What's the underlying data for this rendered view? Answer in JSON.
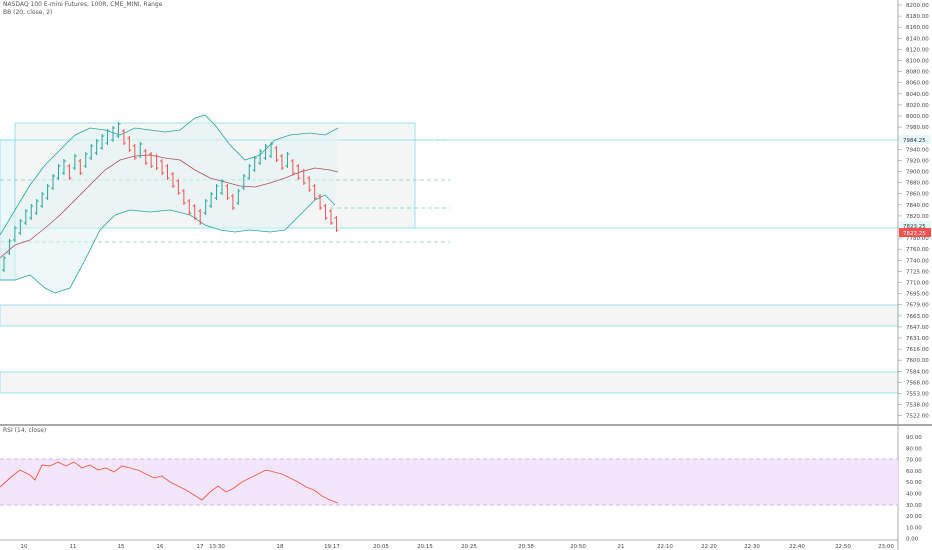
{
  "header": {
    "symbol_line": "NASDAQ 100 E-mini Futures, 100R, CME_MINI, Range",
    "bb_line": "BB (20, close, 2)"
  },
  "rsi": {
    "label": "RSI (14, close)",
    "axis_labels": [
      "90.00",
      "80.00",
      "70.00",
      "60.00",
      "50.00",
      "40.00",
      "30.00",
      "20.00",
      "10.00",
      "0.00"
    ],
    "band_color": "#f3e5fb",
    "line_color": "#f05a3c"
  },
  "price_axis_labels": [
    "8200.00",
    "8180.00",
    "8160.00",
    "8140.00",
    "8120.00",
    "8100.00",
    "8080.00",
    "8060.00",
    "8040.00",
    "8020.00",
    "8000.00",
    "7980.00",
    "7960.00",
    "7940.00",
    "7920.00",
    "7900.00",
    "7880.00",
    "7860.00",
    "7840.00",
    "7820.00",
    "7800.00",
    "7780.00",
    "7760.00",
    "7740.00",
    "7725.00",
    "7710.00",
    "7695.00",
    "7679.00",
    "7663.00",
    "7647.00",
    "7631.00",
    "7616.00",
    "7600.00",
    "7584.00",
    "7568.00",
    "7553.00",
    "7538.00",
    "7522.00"
  ],
  "price_tags": [
    {
      "label": "7984.25",
      "bg": "#e8f7fb",
      "fg": "#333333"
    },
    {
      "label": "7823.25",
      "bg": "#e8f7fb",
      "fg": "#333333"
    },
    {
      "label": "7822.25",
      "bg": "#ef5350",
      "fg": "#ffffff"
    }
  ],
  "time_axis_labels": [
    "10",
    "11",
    "15",
    "16",
    "17",
    "13:30",
    "18",
    "19:17",
    "20:05",
    "20:15",
    "20:25",
    "20:38",
    "20:50",
    "21",
    "22:10",
    "22:20",
    "22:30",
    "22:40",
    "22:50",
    "23:00"
  ],
  "colors": {
    "up": "#26a69a",
    "down": "#ef5350",
    "bb_band": "#26a69a",
    "bb_basis": "#b04c5c",
    "zone": "#80deea"
  }
}
